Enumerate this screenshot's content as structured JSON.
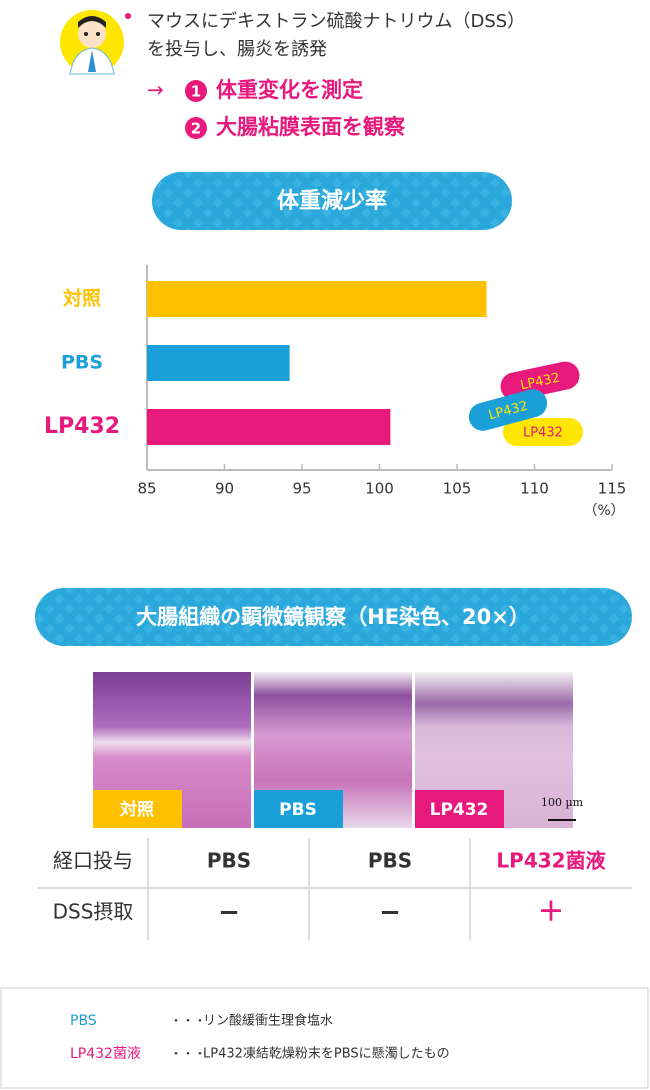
{
  "header": {
    "lines": [
      "マウスにデキストラン硫酸ナトリウム（DSS）",
      "を投与し、腸炎を誘発"
    ],
    "arrow": "→",
    "steps": [
      {
        "num": "1",
        "text": "体重変化を測定"
      },
      {
        "num": "2",
        "text": "大腸粘膜表面を観察"
      }
    ]
  },
  "chart_data": {
    "type": "bar",
    "orientation": "horizontal",
    "title": "体重減少率",
    "categories": [
      "対照",
      "PBS",
      "LP432"
    ],
    "values": [
      106.9,
      94.2,
      100.7
    ],
    "colors": [
      "#ffc000",
      "#1a9fd9",
      "#e8197d"
    ],
    "xlim": [
      85,
      115
    ],
    "xticks": [
      85,
      90,
      95,
      100,
      105,
      110,
      115
    ],
    "x_unit": "（%）",
    "badges": [
      "LP432",
      "LP432",
      "LP432"
    ]
  },
  "micrograph": {
    "title": "大腸組織の顕微鏡観察（HE染色、20×）",
    "panels": [
      "対照",
      "PBS",
      "LP432"
    ],
    "scale": "100 µm"
  },
  "table": {
    "rows": [
      [
        "経口投与",
        "PBS",
        "PBS",
        "LP432菌液"
      ],
      [
        "DSS摂取",
        "−",
        "−",
        "＋"
      ]
    ]
  },
  "notes": [
    {
      "term": "PBS",
      "dots": "・・・",
      "text": "リン酸緩衝生理食塩水"
    },
    {
      "term": "LP432菌液",
      "dots": "・・・",
      "text": "LP432凍結乾燥粉末をPBSに懸濁したもの"
    }
  ]
}
